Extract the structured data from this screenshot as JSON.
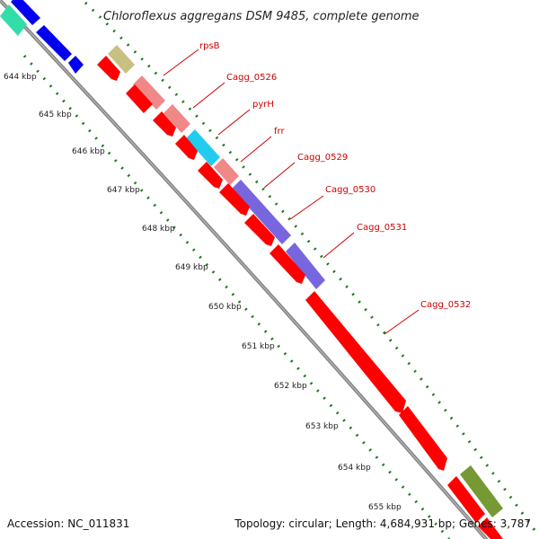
{
  "title": "Chloroflexus aggregans DSM 9485, complete genome",
  "footer": {
    "accession": "Accession: NC_011831",
    "summary": "Topology: circular; Length: 4,684,931 bp; Genes: 3,787"
  },
  "kbp_ticks": [
    "644 kbp",
    "645 kbp",
    "646 kbp",
    "647 kbp",
    "648 kbp",
    "649 kbp",
    "650 kbp",
    "651 kbp",
    "652 kbp",
    "653 kbp",
    "654 kbp",
    "655 kbp"
  ],
  "gene_labels": [
    "rpsB",
    "Cagg_0526",
    "pyrH",
    "frr",
    "Cagg_0529",
    "Cagg_0530",
    "Cagg_0531",
    "Cagg_0532"
  ],
  "colors": {
    "backbone": "#808080",
    "forward_strand_blue": "#0000ee",
    "reverse_strand_red": "#ff0000",
    "teal": "#33ddaa",
    "khaki": "#c8c080",
    "pink": "#f08888",
    "cyan": "#22ccee",
    "purple": "#7766dd",
    "olive": "#779933",
    "dot_green": "#1a7a1a",
    "label_red": "#cc0000"
  }
}
